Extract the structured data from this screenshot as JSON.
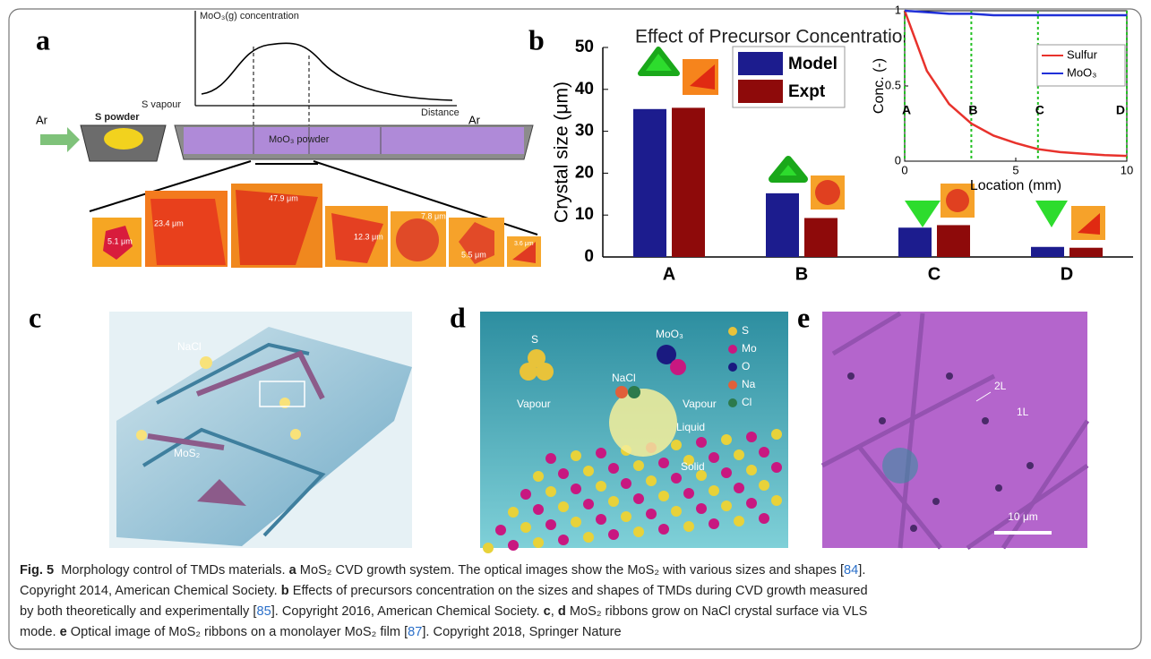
{
  "panels": {
    "a": "a",
    "b": "b",
    "c": "c",
    "d": "d",
    "e": "e"
  },
  "panel_a": {
    "curve_label": "MoO₃(g) concentration",
    "x_label": "Distance",
    "ar_left": "Ar",
    "ar_right": "Ar",
    "s_powder": "S powder",
    "s_vapour": "S vapour",
    "moo3_powder": "MoO₃ powder",
    "sizes": [
      "5.1 μm",
      "23.4 μm",
      "47.9 μm",
      "12.3 μm",
      "7.8 μm",
      "5.5 μm",
      "3.6 μm"
    ]
  },
  "panel_c": {
    "nacl": "NaCl",
    "mos2": "MoS₂"
  },
  "panel_d": {
    "legend": [
      "S",
      "Mo",
      "O",
      "Na",
      "Cl"
    ],
    "s": "S",
    "moo3": "MoO₃",
    "nacl": "NaCl",
    "vapour_left": "Vapour",
    "vapour_right": "Vapour",
    "liquid": "Liquid",
    "solid": "Solid"
  },
  "panel_e": {
    "bilayer": "2L",
    "monolayer": "1L",
    "scale": "10 μm"
  },
  "chart_data": [
    {
      "type": "bar",
      "title": "Effect of Precursor Concentration on TMD CVD Growth",
      "y_label": "Crystal size (μm)",
      "categories": [
        "A",
        "B",
        "C",
        "D"
      ],
      "series": [
        {
          "name": "Model",
          "color": "#1c1c8e",
          "values": [
            35.3,
            15.2,
            7,
            2.4
          ]
        },
        {
          "name": "Expt",
          "color": "#8e0a0a",
          "values": [
            35.6,
            9.3,
            7.6,
            2.2
          ]
        }
      ],
      "ylim": [
        0,
        50
      ],
      "yticks": [
        0,
        10,
        20,
        30,
        40,
        50
      ]
    },
    {
      "type": "line",
      "x_label": "Location (mm)",
      "y_label": "Conc. (-)",
      "x": [
        0,
        1,
        2,
        3,
        4,
        5,
        6,
        7,
        8,
        9,
        10
      ],
      "series": [
        {
          "name": "Sulfur",
          "color": "#e8322c",
          "values": [
            1,
            0.6,
            0.38,
            0.25,
            0.17,
            0.12,
            0.08,
            0.06,
            0.05,
            0.04,
            0.035
          ]
        },
        {
          "name": "MoO₃",
          "color": "#2030d8",
          "values": [
            1,
            0.99,
            0.98,
            0.98,
            0.97,
            0.97,
            0.97,
            0.97,
            0.97,
            0.97,
            0.97
          ]
        }
      ],
      "markers": [
        {
          "x": 0,
          "label": "A"
        },
        {
          "x": 3,
          "label": "B"
        },
        {
          "x": 6,
          "label": "C"
        },
        {
          "x": 10,
          "label": "D"
        }
      ],
      "xlim": [
        0,
        10
      ],
      "ylim": [
        0,
        1
      ],
      "xticks": [
        0,
        5,
        10
      ],
      "yticks": [
        0,
        0.5,
        1
      ]
    }
  ],
  "caption": {
    "lines": [
      [
        "Fig. 5",
        "  Morphology control of TMDs materials. ",
        "a",
        " MoS₂ CVD growth system. The optical images show the MoS₂ with various sizes and shapes [",
        "84",
        "]."
      ],
      [
        "Copyright 2014, American Chemical Society. ",
        "b",
        " Effects of precursors concentration on the sizes and shapes of TMDs during CVD growth measured"
      ],
      [
        "by both theoretically and experimentally [",
        "85",
        "]. Copyright 2016, American Chemical Society. ",
        "c",
        ", ",
        "d",
        " MoS₂ ribbons grow on NaCl crystal surface via VLS"
      ],
      [
        "mode. ",
        "e",
        " Optical image of MoS₂ ribbons on a monolayer MoS₂ film [",
        "87",
        "]. Copyright 2018, Springer Nature"
      ]
    ]
  }
}
